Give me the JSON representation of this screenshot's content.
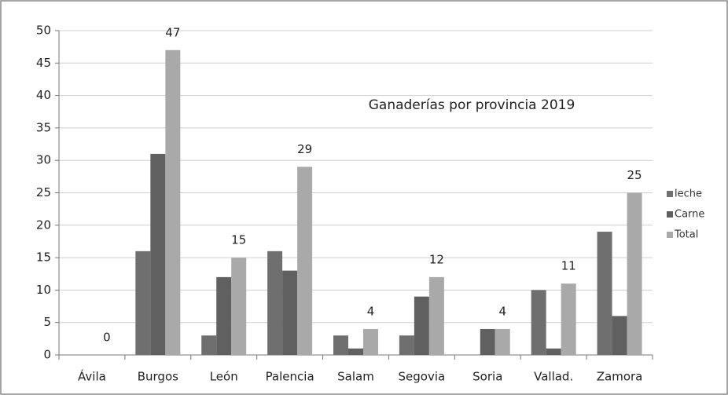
{
  "chart_data": {
    "type": "bar",
    "title": "Ganaderías por provincia 2019",
    "categories": [
      "Ávila",
      "Burgos",
      "León",
      "Palencia",
      "Salam",
      "Segovia",
      "Soria",
      "Vallad.",
      "Zamora"
    ],
    "series": [
      {
        "name": "leche",
        "color": "#6f6f6f",
        "values": [
          0,
          16,
          3,
          16,
          3,
          3,
          0,
          10,
          19
        ]
      },
      {
        "name": "Carne",
        "color": "#606060",
        "values": [
          0,
          31,
          12,
          13,
          1,
          9,
          4,
          1,
          6
        ]
      },
      {
        "name": "Total",
        "color": "#a9a9a9",
        "values": [
          0,
          47,
          15,
          29,
          4,
          12,
          4,
          11,
          25
        ],
        "data_labels": true
      }
    ],
    "ylim": [
      0,
      50
    ],
    "yticks": [
      0,
      5,
      10,
      15,
      20,
      25,
      30,
      35,
      40,
      45,
      50
    ],
    "grid": true,
    "legend": "right"
  }
}
